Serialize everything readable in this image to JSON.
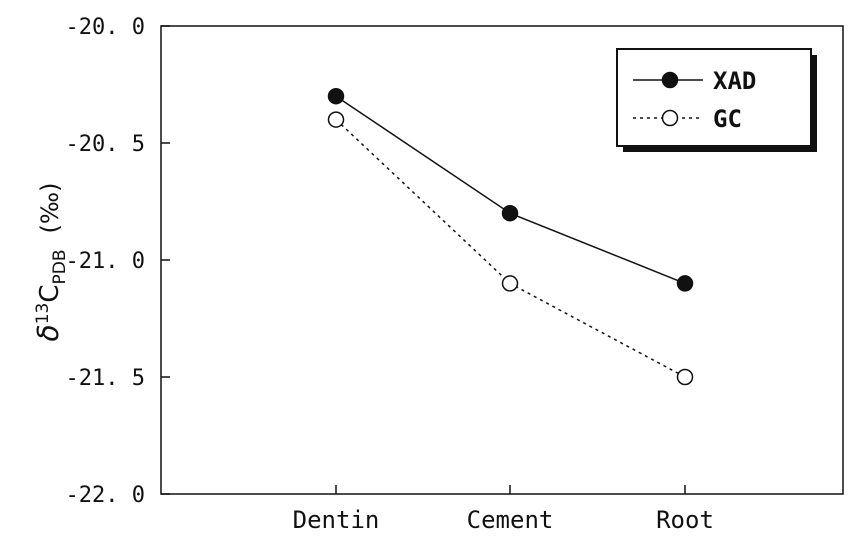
{
  "chart_data": {
    "type": "line",
    "categories": [
      "Dentin",
      "Cement",
      "Root"
    ],
    "series": [
      {
        "name": "XAD",
        "values": [
          -20.3,
          -20.8,
          -21.1
        ],
        "marker": "filled-circle",
        "line": "solid",
        "color": "#111111"
      },
      {
        "name": "GC",
        "values": [
          -20.4,
          -21.1,
          -21.5
        ],
        "marker": "open-circle",
        "line": "dotted",
        "color": "#111111"
      }
    ],
    "ylim": [
      -22.0,
      -20.0
    ],
    "yticks": [
      -20.0,
      -20.5,
      -21.0,
      -21.5,
      -22.0
    ],
    "ytick_labels": [
      "-20. 0",
      "-20. 5",
      "-21. 0",
      "-21. 5",
      "-22. 0"
    ],
    "ylabel": {
      "delta": "δ",
      "sup": "13",
      "main": "C",
      "sub": "PDB",
      "unit": "(‰)"
    },
    "legend_position": "top-right",
    "grid": false
  }
}
